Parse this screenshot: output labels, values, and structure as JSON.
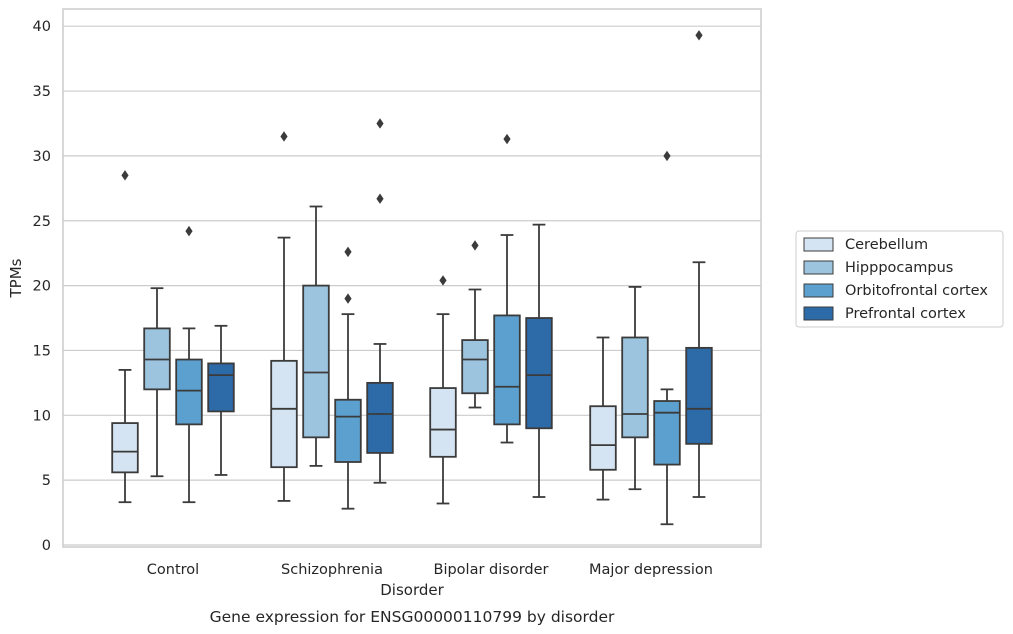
{
  "chart_data": {
    "type": "boxplot",
    "title": "Gene expression for ENSG00000110799 by disorder",
    "xlabel": "Disorder",
    "ylabel": "TPMs",
    "ylim": [
      -0.2,
      41.3
    ],
    "yticks": [
      0,
      5,
      10,
      15,
      20,
      25,
      30,
      35,
      40
    ],
    "categories": [
      "Control",
      "Schizophrenia",
      "Bipolar disorder",
      "Major depression"
    ],
    "grid": "horizontal",
    "legend_position": "right",
    "series": [
      {
        "name": "Cerebellum",
        "color": "#d4e4f2",
        "boxes": [
          {
            "whislo": 3.3,
            "q1": 5.6,
            "med": 7.2,
            "q3": 9.4,
            "whishi": 13.5,
            "fliers": [
              28.5
            ]
          },
          {
            "whislo": 3.4,
            "q1": 6.0,
            "med": 10.5,
            "q3": 14.2,
            "whishi": 23.7,
            "fliers": [
              31.5
            ]
          },
          {
            "whislo": 3.2,
            "q1": 6.8,
            "med": 8.9,
            "q3": 12.1,
            "whishi": 17.8,
            "fliers": [
              20.4
            ]
          },
          {
            "whislo": 3.5,
            "q1": 5.8,
            "med": 7.7,
            "q3": 10.7,
            "whishi": 16.0,
            "fliers": []
          }
        ]
      },
      {
        "name": "Hipppocampus",
        "color": "#9cc4de",
        "boxes": [
          {
            "whislo": 5.3,
            "q1": 12.0,
            "med": 14.3,
            "q3": 16.7,
            "whishi": 19.8,
            "fliers": []
          },
          {
            "whislo": 6.1,
            "q1": 8.3,
            "med": 13.3,
            "q3": 20.0,
            "whishi": 26.1,
            "fliers": []
          },
          {
            "whislo": 10.6,
            "q1": 11.7,
            "med": 14.3,
            "q3": 15.8,
            "whishi": 19.7,
            "fliers": [
              23.1
            ]
          },
          {
            "whislo": 4.3,
            "q1": 8.3,
            "med": 10.1,
            "q3": 16.0,
            "whishi": 19.9,
            "fliers": []
          }
        ]
      },
      {
        "name": "Orbitofrontal cortex",
        "color": "#5ca0cf",
        "boxes": [
          {
            "whislo": 3.3,
            "q1": 9.3,
            "med": 11.9,
            "q3": 14.3,
            "whishi": 16.7,
            "fliers": [
              24.2
            ]
          },
          {
            "whislo": 2.8,
            "q1": 6.4,
            "med": 9.9,
            "q3": 11.2,
            "whishi": 17.8,
            "fliers": [
              19.0,
              22.6
            ]
          },
          {
            "whislo": 7.9,
            "q1": 9.3,
            "med": 12.2,
            "q3": 17.7,
            "whishi": 23.9,
            "fliers": [
              31.3
            ]
          },
          {
            "whislo": 1.6,
            "q1": 6.2,
            "med": 10.2,
            "q3": 11.1,
            "whishi": 12.0,
            "fliers": [
              30.0
            ]
          }
        ]
      },
      {
        "name": "Prefrontal cortex",
        "color": "#2c6aa8",
        "boxes": [
          {
            "whislo": 5.4,
            "q1": 10.3,
            "med": 13.1,
            "q3": 14.0,
            "whishi": 16.9,
            "fliers": []
          },
          {
            "whislo": 4.8,
            "q1": 7.1,
            "med": 10.1,
            "q3": 12.5,
            "whishi": 15.5,
            "fliers": [
              26.7,
              32.5
            ]
          },
          {
            "whislo": 3.7,
            "q1": 9.0,
            "med": 13.1,
            "q3": 17.5,
            "whishi": 24.7,
            "fliers": []
          },
          {
            "whislo": 3.7,
            "q1": 7.8,
            "med": 10.5,
            "q3": 15.2,
            "whishi": 21.8,
            "fliers": [
              39.3
            ]
          }
        ]
      }
    ]
  }
}
